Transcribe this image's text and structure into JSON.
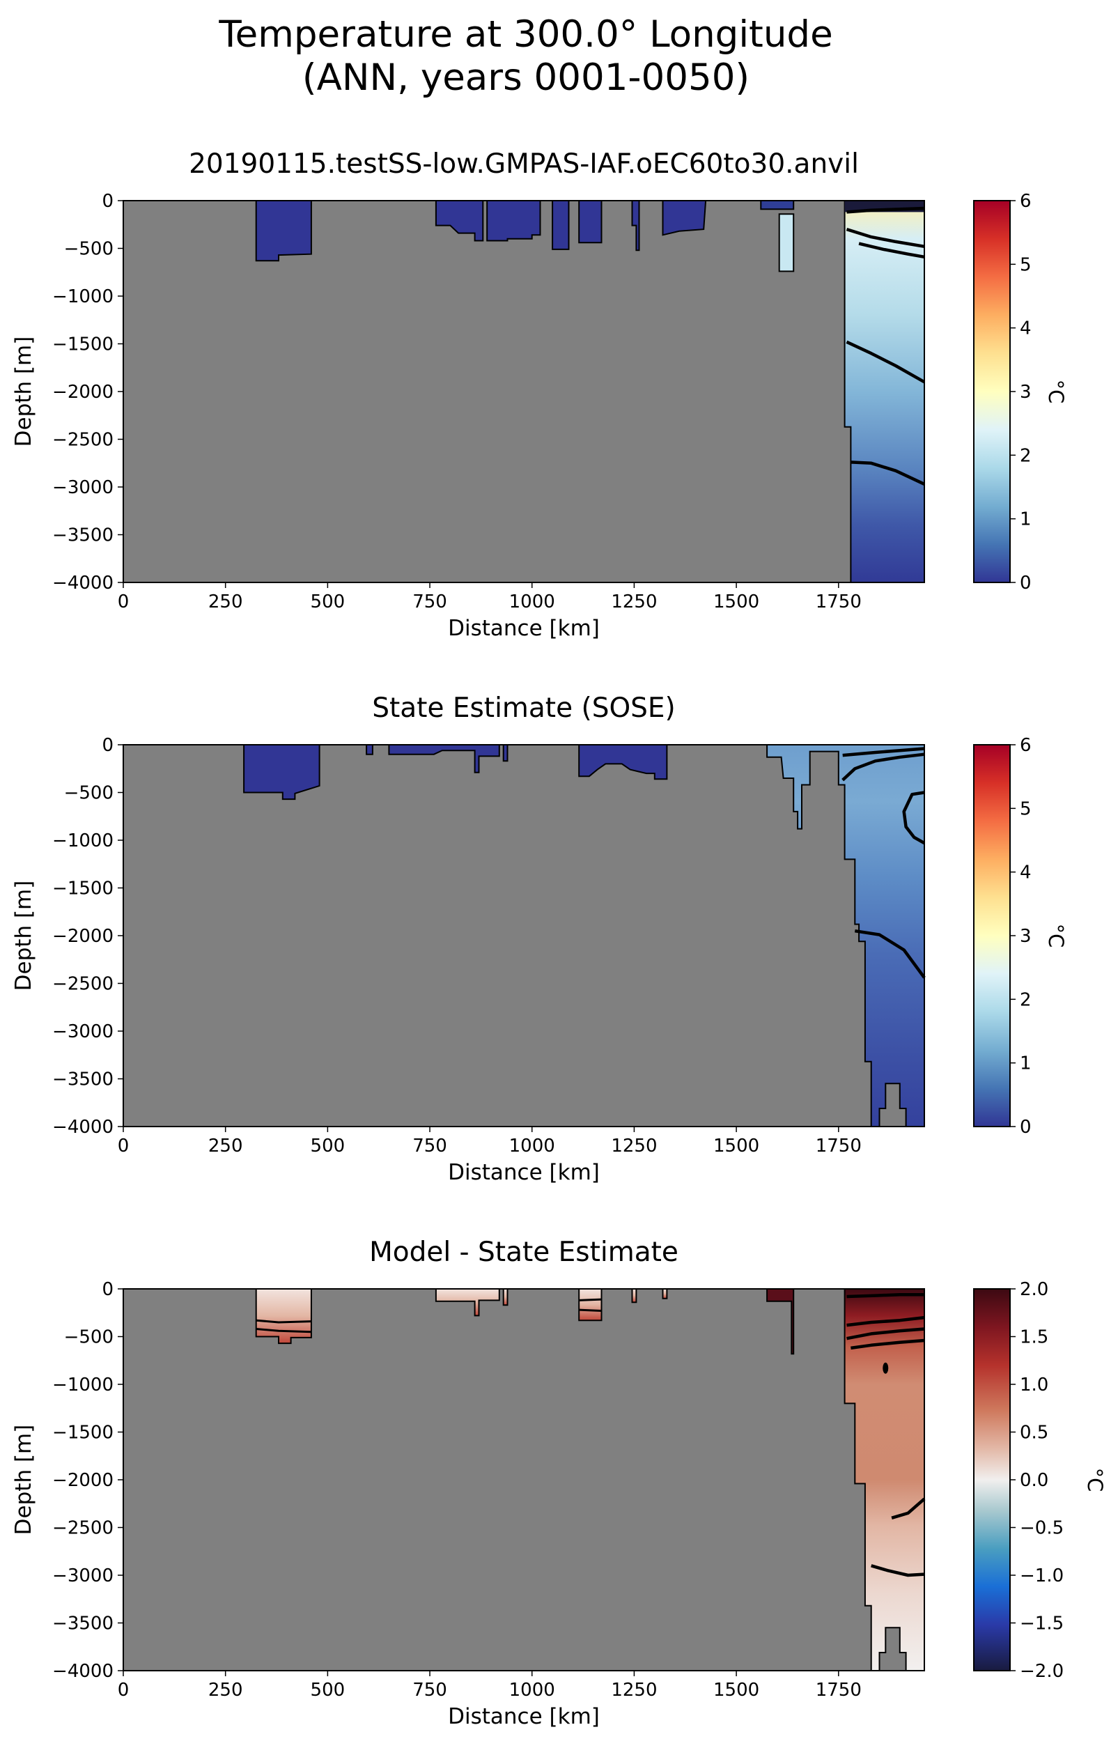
{
  "figure": {
    "title_line1": "Temperature at 300.0° Longitude",
    "title_line2": "(ANN, years 0001-0050)"
  },
  "chart_data": [
    {
      "type": "heatmap",
      "title": "20190115.testSS-low.GMPAS-IAF.oEC60to30.anvil",
      "xlabel": "Distance [km]",
      "ylabel": "Depth [m]",
      "xlim": [
        0,
        1960
      ],
      "ylim": [
        -4000,
        0
      ],
      "xticks": [
        "0",
        "250",
        "500",
        "750",
        "1000",
        "1250",
        "1500",
        "1750"
      ],
      "yticks": [
        "0",
        "−500",
        "−1000",
        "−1500",
        "−2000",
        "−2500",
        "−3000",
        "−3500",
        "−4000"
      ],
      "colorbar": {
        "label": "°C",
        "min": 0,
        "max": 6,
        "ticks": [
          "0",
          "1",
          "2",
          "3",
          "4",
          "5",
          "6"
        ],
        "colormap": "RdYlBu_r"
      },
      "grid": false
    },
    {
      "type": "heatmap",
      "title": "State Estimate (SOSE)",
      "xlabel": "Distance [km]",
      "ylabel": "Depth [m]",
      "xlim": [
        0,
        1960
      ],
      "ylim": [
        -4000,
        0
      ],
      "xticks": [
        "0",
        "250",
        "500",
        "750",
        "1000",
        "1250",
        "1500",
        "1750"
      ],
      "yticks": [
        "0",
        "−500",
        "−1000",
        "−1500",
        "−2000",
        "−2500",
        "−3000",
        "−3500",
        "−4000"
      ],
      "colorbar": {
        "label": "°C",
        "min": 0,
        "max": 6,
        "ticks": [
          "0",
          "1",
          "2",
          "3",
          "4",
          "5",
          "6"
        ],
        "colormap": "RdYlBu_r"
      },
      "grid": false
    },
    {
      "type": "heatmap",
      "title": "Model - State Estimate",
      "xlabel": "Distance [km]",
      "ylabel": "Depth [m]",
      "xlim": [
        0,
        1960
      ],
      "ylim": [
        -4000,
        0
      ],
      "xticks": [
        "0",
        "250",
        "500",
        "750",
        "1000",
        "1250",
        "1500",
        "1750"
      ],
      "yticks": [
        "0",
        "−500",
        "−1000",
        "−1500",
        "−2000",
        "−2500",
        "−3000",
        "−3500",
        "−4000"
      ],
      "colorbar": {
        "label": "°C",
        "min": -2,
        "max": 2,
        "ticks": [
          "−2.0",
          "−1.5",
          "−1.0",
          "−0.5",
          "0.0",
          "0.5",
          "1.0",
          "1.5",
          "2.0"
        ],
        "colormap": "balance"
      },
      "grid": false
    }
  ]
}
